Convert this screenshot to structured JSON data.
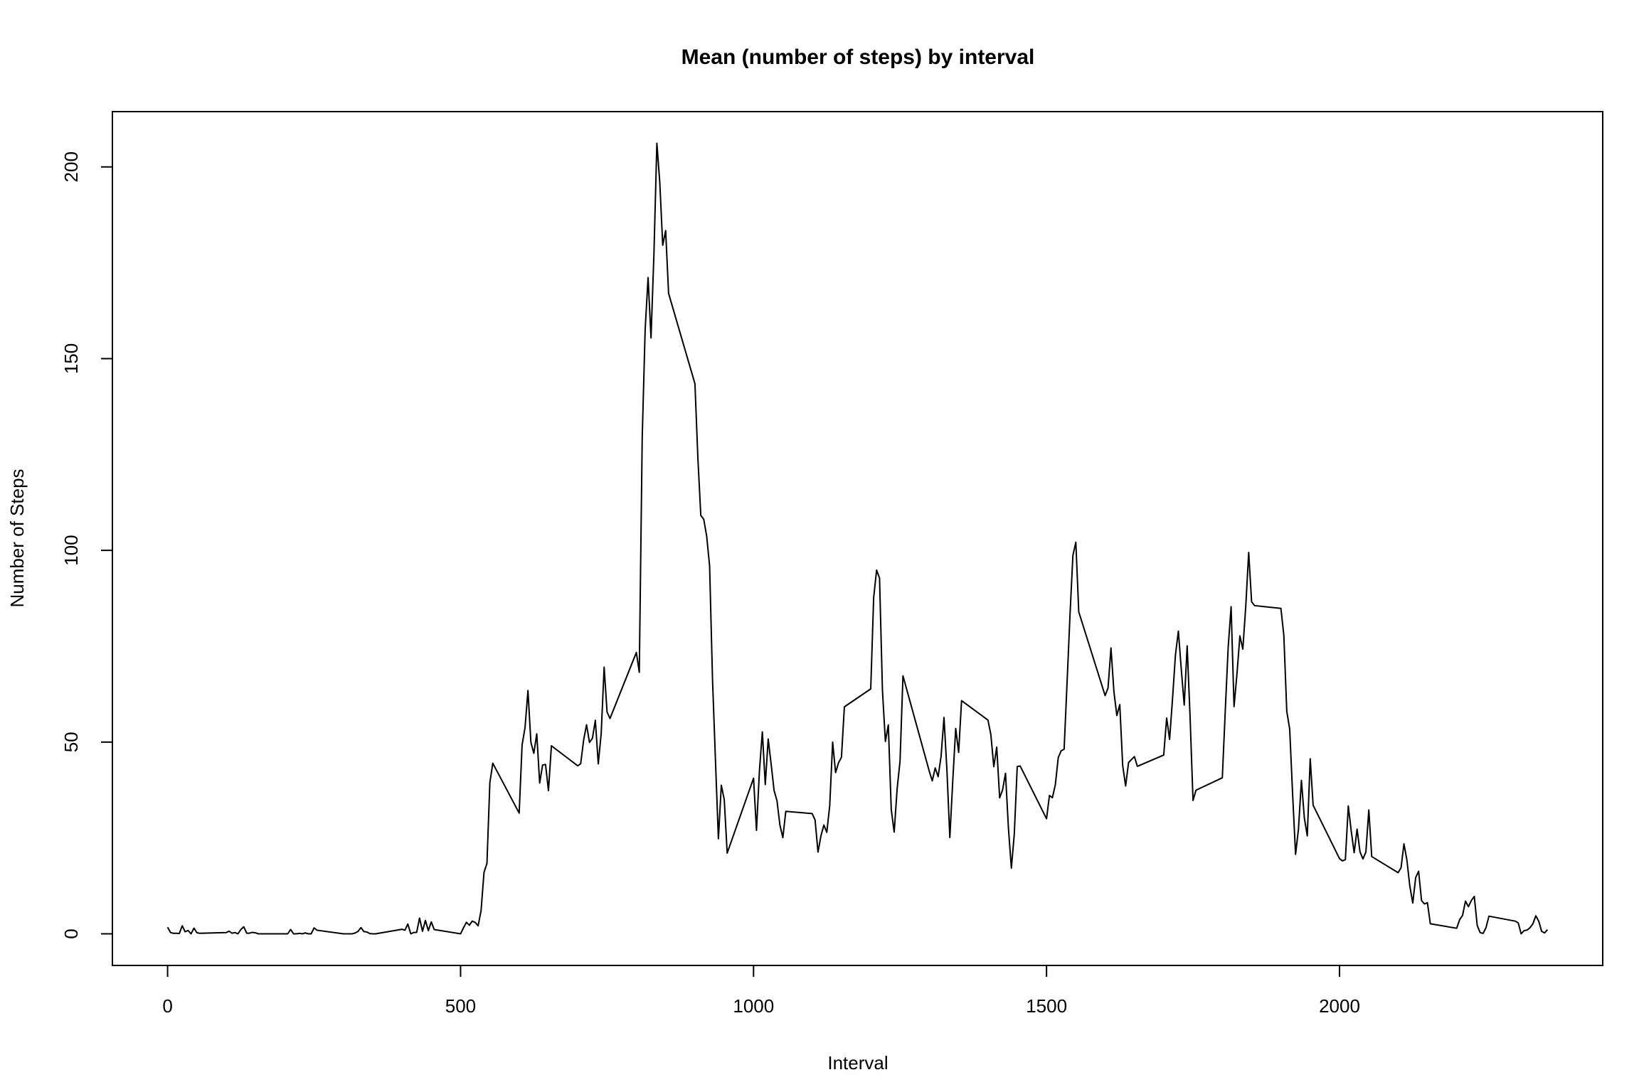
{
  "chart_data": {
    "type": "line",
    "title": "Mean (number of steps) by interval",
    "x_label": "Interval",
    "y_label": "Number of Steps",
    "color": "#000000",
    "xlim": [
      -94.2,
      2449.2
    ],
    "xticks": [
      0,
      500,
      1000,
      1500,
      2000
    ],
    "ylim": [
      -8.25,
      214.42
    ],
    "yticks": [
      0,
      50,
      100,
      150,
      200
    ],
    "x": [
      0,
      5,
      10,
      15,
      20,
      25,
      30,
      35,
      40,
      45,
      50,
      55,
      100,
      105,
      110,
      115,
      120,
      125,
      130,
      135,
      140,
      145,
      150,
      155,
      200,
      205,
      210,
      215,
      220,
      225,
      230,
      235,
      240,
      245,
      250,
      255,
      300,
      305,
      310,
      315,
      320,
      325,
      330,
      335,
      340,
      345,
      350,
      355,
      400,
      405,
      410,
      415,
      420,
      425,
      430,
      435,
      440,
      445,
      450,
      455,
      500,
      505,
      510,
      515,
      520,
      525,
      530,
      535,
      540,
      545,
      550,
      555,
      600,
      605,
      610,
      615,
      620,
      625,
      630,
      635,
      640,
      645,
      650,
      655,
      700,
      705,
      710,
      715,
      720,
      725,
      730,
      735,
      740,
      745,
      750,
      755,
      800,
      805,
      810,
      815,
      820,
      825,
      830,
      835,
      840,
      845,
      850,
      855,
      900,
      905,
      910,
      915,
      920,
      925,
      930,
      935,
      940,
      945,
      950,
      955,
      1000,
      1005,
      1010,
      1015,
      1020,
      1025,
      1030,
      1035,
      1040,
      1045,
      1050,
      1055,
      1100,
      1105,
      1110,
      1115,
      1120,
      1125,
      1130,
      1135,
      1140,
      1145,
      1150,
      1155,
      1200,
      1205,
      1210,
      1215,
      1220,
      1225,
      1230,
      1235,
      1240,
      1245,
      1250,
      1255,
      1300,
      1305,
      1310,
      1315,
      1320,
      1325,
      1330,
      1335,
      1340,
      1345,
      1350,
      1355,
      1400,
      1405,
      1410,
      1415,
      1420,
      1425,
      1430,
      1435,
      1440,
      1445,
      1450,
      1455,
      1500,
      1505,
      1510,
      1515,
      1520,
      1525,
      1530,
      1535,
      1540,
      1545,
      1550,
      1555,
      1600,
      1605,
      1610,
      1615,
      1620,
      1625,
      1630,
      1635,
      1640,
      1645,
      1650,
      1655,
      1700,
      1705,
      1710,
      1715,
      1720,
      1725,
      1730,
      1735,
      1740,
      1745,
      1750,
      1755,
      1800,
      1805,
      1810,
      1815,
      1820,
      1825,
      1830,
      1835,
      1840,
      1845,
      1850,
      1855,
      1900,
      1905,
      1910,
      1915,
      1920,
      1925,
      1930,
      1935,
      1940,
      1945,
      1950,
      1955,
      2000,
      2005,
      2010,
      2015,
      2020,
      2025,
      2030,
      2035,
      2040,
      2045,
      2050,
      2055,
      2100,
      2105,
      2110,
      2115,
      2120,
      2125,
      2130,
      2135,
      2140,
      2145,
      2150,
      2155,
      2200,
      2205,
      2210,
      2215,
      2220,
      2225,
      2230,
      2235,
      2240,
      2245,
      2250,
      2255,
      2300,
      2305,
      2310,
      2315,
      2320,
      2325,
      2330,
      2335,
      2340,
      2345,
      2350,
      2355
    ],
    "values": [
      1.72,
      0.34,
      0.13,
      0.15,
      0.08,
      2.09,
      0.53,
      0.87,
      0,
      1.47,
      0.3,
      0.13,
      0.32,
      0.68,
      0.15,
      0.34,
      0,
      1.11,
      1.83,
      0.17,
      0.17,
      0.38,
      0.26,
      0,
      0,
      0,
      1.13,
      0,
      0,
      0.13,
      0,
      0.23,
      0,
      0,
      1.55,
      0.94,
      0,
      0,
      0,
      0,
      0.21,
      0.62,
      1.62,
      0.58,
      0.49,
      0.08,
      0,
      0,
      1.19,
      0.94,
      2.57,
      0,
      0.34,
      0.36,
      4.11,
      0.66,
      3.49,
      0.83,
      3.11,
      1.11,
      0,
      1.57,
      3,
      2.25,
      3.32,
      2.96,
      2.09,
      6.06,
      16.02,
      18.34,
      39.45,
      44.49,
      31.49,
      49.26,
      53.77,
      63.45,
      49.96,
      47.08,
      52.15,
      39.34,
      44.02,
      44.17,
      37.36,
      49.04,
      43.81,
      44.38,
      50.51,
      54.51,
      49.92,
      50.98,
      55.68,
      44.32,
      52.26,
      69.55,
      57.85,
      56.15,
      73.38,
      68.21,
      129.43,
      157.53,
      171.15,
      155.4,
      177.3,
      206.17,
      195.92,
      179.57,
      183.4,
      167.02,
      143.45,
      124.04,
      109.11,
      108.11,
      103.72,
      95.96,
      66.21,
      45.23,
      24.79,
      38.75,
      34.98,
      21.06,
      40.57,
      26.98,
      42.42,
      52.66,
      38.92,
      50.79,
      44.28,
      37.42,
      34.7,
      28.34,
      25.09,
      31.94,
      31.36,
      29.68,
      21.32,
      25.55,
      28.38,
      26.47,
      33.43,
      49.98,
      42.04,
      44.6,
      46.04,
      59.19,
      63.87,
      87.7,
      94.85,
      92.77,
      63.4,
      50.17,
      54.47,
      32.42,
      26.53,
      37.74,
      45.06,
      67.28,
      42.34,
      39.89,
      43.26,
      40.98,
      46.25,
      56.43,
      42.75,
      25.13,
      39.96,
      53.55,
      47.32,
      60.81,
      55.75,
      51.96,
      43.58,
      48.7,
      35.47,
      37.55,
      41.85,
      27.51,
      17.11,
      26.08,
      43.62,
      43.77,
      30.02,
      36.08,
      35.49,
      38.85,
      45.96,
      47.75,
      48.13,
      65.32,
      82.91,
      98.66,
      102.11,
      83.96,
      62.13,
      64.13,
      74.55,
      63.17,
      56.91,
      59.77,
      43.87,
      38.57,
      44.66,
      45.45,
      46.21,
      43.68,
      46.62,
      56.3,
      50.72,
      61.23,
      72.72,
      78.94,
      68.94,
      59.66,
      75.09,
      56.51,
      34.77,
      37.45,
      40.68,
      58.02,
      74.7,
      85.32,
      59.26,
      67.77,
      77.7,
      74.25,
      85.34,
      99.45,
      86.58,
      85.6,
      84.87,
      77.83,
      58.04,
      53.36,
      36.32,
      20.72,
      27.4,
      40.02,
      30.21,
      25.55,
      45.66,
      33.53,
      19.62,
      19.02,
      19.34,
      33.34,
      26.81,
      21.17,
      27.3,
      21.34,
      19.55,
      21.32,
      32.3,
      20.15,
      15.94,
      17.23,
      23.45,
      19.25,
      12.45,
      8.02,
      14.66,
      16.3,
      8.68,
      7.79,
      8.13,
      2.62,
      1.45,
      3.68,
      4.81,
      8.51,
      7.08,
      8.7,
      9.75,
      2.21,
      0.32,
      0.11,
      1.6,
      4.6,
      3.3,
      2.85,
      0,
      0.83,
      0.96,
      1.58,
      2.6,
      4.7,
      3.3,
      0.64,
      0.23,
      1.08
    ]
  }
}
